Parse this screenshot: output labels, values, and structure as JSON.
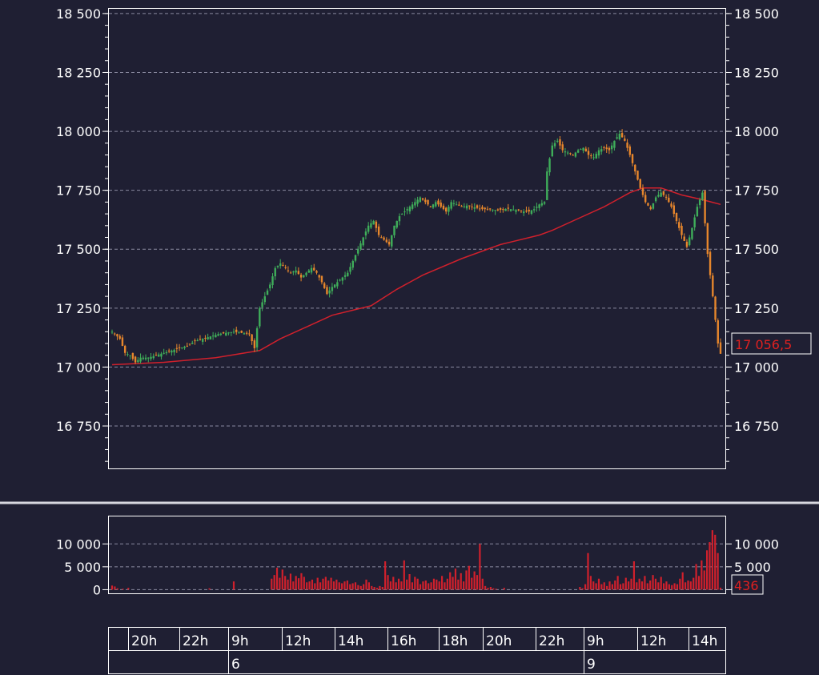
{
  "colors": {
    "background": "#1f1f33",
    "frame": "#ffffff",
    "grid": "#8a8aa0",
    "up": "#3fae5a",
    "down": "#e6862c",
    "ma": "#d0202c",
    "volume": "#d0202c",
    "current": "#e02020"
  },
  "chart_data": [
    {
      "type": "candlestick",
      "ylim": [
        16570,
        18520
      ],
      "y_ticks": [
        16750,
        17000,
        17250,
        17500,
        17750,
        18000,
        18250,
        18500
      ],
      "y_tick_labels": [
        "16 750",
        "17 000",
        "17 250",
        "17 500",
        "17 750",
        "18 000",
        "18 250",
        "18 500"
      ],
      "grid": "horizontal-dashed",
      "current_value": 17056.5,
      "current_label": "17 056,5",
      "series_price": [
        [
          0,
          17150
        ],
        [
          3,
          17120
        ],
        [
          5,
          17060
        ],
        [
          7,
          17050
        ],
        [
          9,
          17020
        ],
        [
          11,
          17040
        ],
        [
          14,
          17040
        ],
        [
          17,
          17050
        ],
        [
          20,
          17060
        ],
        [
          23,
          17070
        ],
        [
          26,
          17080
        ],
        [
          29,
          17090
        ],
        [
          32,
          17110
        ],
        [
          35,
          17120
        ],
        [
          38,
          17130
        ],
        [
          41,
          17140
        ],
        [
          44,
          17145
        ],
        [
          47,
          17150
        ],
        [
          50,
          17145
        ],
        [
          53,
          17140
        ],
        [
          55,
          17080
        ],
        [
          57,
          17250
        ],
        [
          59,
          17300
        ],
        [
          61,
          17350
        ],
        [
          63,
          17420
        ],
        [
          65,
          17440
        ],
        [
          67,
          17420
        ],
        [
          69,
          17400
        ],
        [
          71,
          17410
        ],
        [
          73,
          17380
        ],
        [
          75,
          17400
        ],
        [
          77,
          17420
        ],
        [
          79,
          17400
        ],
        [
          81,
          17360
        ],
        [
          83,
          17310
        ],
        [
          85,
          17340
        ],
        [
          87,
          17360
        ],
        [
          89,
          17380
        ],
        [
          91,
          17400
        ],
        [
          93,
          17450
        ],
        [
          95,
          17500
        ],
        [
          97,
          17550
        ],
        [
          99,
          17600
        ],
        [
          101,
          17620
        ],
        [
          103,
          17560
        ],
        [
          105,
          17540
        ],
        [
          107,
          17520
        ],
        [
          109,
          17600
        ],
        [
          111,
          17640
        ],
        [
          113,
          17660
        ],
        [
          115,
          17680
        ],
        [
          117,
          17700
        ],
        [
          119,
          17720
        ],
        [
          121,
          17700
        ],
        [
          123,
          17680
        ],
        [
          125,
          17700
        ],
        [
          127,
          17680
        ],
        [
          129,
          17660
        ],
        [
          131,
          17700
        ],
        [
          133,
          17690
        ],
        [
          135,
          17680
        ],
        [
          137,
          17685
        ],
        [
          139,
          17680
        ],
        [
          141,
          17675
        ],
        [
          143,
          17670
        ],
        [
          145,
          17670
        ],
        [
          147,
          17668
        ],
        [
          149,
          17665
        ],
        [
          151,
          17670
        ],
        [
          153,
          17672
        ],
        [
          155,
          17668
        ],
        [
          157,
          17665
        ],
        [
          159,
          17660
        ],
        [
          161,
          17660
        ],
        [
          163,
          17670
        ],
        [
          165,
          17690
        ],
        [
          167,
          17700
        ],
        [
          168,
          17830
        ],
        [
          170,
          17940
        ],
        [
          172,
          17960
        ],
        [
          174,
          17920
        ],
        [
          176,
          17910
        ],
        [
          178,
          17900
        ],
        [
          180,
          17920
        ],
        [
          182,
          17930
        ],
        [
          184,
          17900
        ],
        [
          186,
          17890
        ],
        [
          188,
          17920
        ],
        [
          190,
          17930
        ],
        [
          192,
          17920
        ],
        [
          194,
          17960
        ],
        [
          196,
          17990
        ],
        [
          198,
          17960
        ],
        [
          200,
          17900
        ],
        [
          202,
          17830
        ],
        [
          204,
          17760
        ],
        [
          206,
          17700
        ],
        [
          208,
          17670
        ],
        [
          210,
          17720
        ],
        [
          212,
          17740
        ],
        [
          214,
          17720
        ],
        [
          216,
          17680
        ],
        [
          218,
          17620
        ],
        [
          220,
          17560
        ],
        [
          222,
          17510
        ],
        [
          224,
          17590
        ],
        [
          226,
          17680
        ],
        [
          228,
          17740
        ],
        [
          230,
          17480
        ],
        [
          232,
          17300
        ],
        [
          234,
          17100
        ],
        [
          235,
          17056.5
        ]
      ],
      "series_ma": [
        [
          0,
          17010
        ],
        [
          20,
          17020
        ],
        [
          40,
          17040
        ],
        [
          57,
          17070
        ],
        [
          65,
          17120
        ],
        [
          75,
          17170
        ],
        [
          85,
          17220
        ],
        [
          100,
          17260
        ],
        [
          110,
          17330
        ],
        [
          120,
          17390
        ],
        [
          135,
          17460
        ],
        [
          150,
          17520
        ],
        [
          165,
          17560
        ],
        [
          170,
          17580
        ],
        [
          180,
          17630
        ],
        [
          190,
          17680
        ],
        [
          200,
          17740
        ],
        [
          205,
          17760
        ],
        [
          212,
          17760
        ],
        [
          220,
          17730
        ],
        [
          228,
          17710
        ],
        [
          235,
          17690
        ]
      ]
    },
    {
      "type": "bar",
      "ylim": [
        -800,
        16000
      ],
      "y_ticks": [
        0,
        5000,
        10000
      ],
      "y_tick_labels": [
        "0",
        "5 000",
        "10 000"
      ],
      "current_value": 436,
      "current_label": "436",
      "values": [
        900,
        700,
        300,
        0,
        200,
        0,
        400,
        0,
        0,
        0,
        0,
        0,
        0,
        0,
        0,
        0,
        0,
        0,
        0,
        0,
        0,
        0,
        0,
        0,
        0,
        0,
        0,
        0,
        0,
        0,
        0,
        0,
        0,
        0,
        0,
        0,
        300,
        0,
        0,
        0,
        0,
        0,
        0,
        0,
        0,
        1800,
        0,
        0,
        0,
        0,
        0,
        0,
        0,
        0,
        0,
        0,
        0,
        0,
        0,
        2400,
        3200,
        4800,
        2600,
        4400,
        3000,
        2200,
        3500,
        1800,
        3000,
        2500,
        3600,
        2800,
        1600,
        1800,
        2200,
        1400,
        2600,
        1600,
        2400,
        2800,
        2000,
        2600,
        1800,
        2200,
        1600,
        1400,
        1800,
        2000,
        1200,
        1400,
        1600,
        1000,
        800,
        1200,
        2200,
        1600,
        800,
        600,
        400,
        800,
        600,
        6200,
        3200,
        1800,
        2800,
        1600,
        2400,
        1800,
        6400,
        2200,
        3400,
        1600,
        2800,
        2400,
        1200,
        1800,
        2000,
        1400,
        1600,
        2400,
        2200,
        1800,
        3000,
        1600,
        2400,
        3800,
        2800,
        4600,
        2200,
        3600,
        1800,
        4200,
        5200,
        2600,
        4000,
        3200,
        10000,
        2400,
        800,
        400,
        600,
        300,
        200,
        0,
        0,
        400,
        0,
        0,
        0,
        0,
        0,
        0,
        0,
        0,
        0,
        0,
        0,
        0,
        0,
        0,
        0,
        0,
        0,
        0,
        0,
        0,
        0,
        0,
        0,
        0,
        0,
        0,
        0,
        600,
        300,
        1200,
        8000,
        3000,
        1800,
        1400,
        2400,
        1200,
        1600,
        800,
        1800,
        1200,
        2000,
        3000,
        1200,
        1400,
        2600,
        1800,
        2400,
        6200,
        1600,
        2400,
        1800,
        3000,
        1400,
        2000,
        3200,
        2400,
        1600,
        2800,
        1400,
        1800,
        1200,
        1000,
        1400,
        1200,
        2400,
        3800,
        1600,
        2000,
        1800,
        2600,
        5600,
        3000,
        6400,
        4200,
        8600,
        10400,
        13000,
        12000,
        8000,
        436
      ]
    }
  ],
  "timeline": {
    "hours": [
      "20h",
      "22h",
      "9h",
      "12h",
      "14h",
      "16h",
      "18h",
      "20h",
      "22h",
      "9h",
      "12h",
      "14h"
    ],
    "days": [
      "6",
      "9"
    ]
  }
}
